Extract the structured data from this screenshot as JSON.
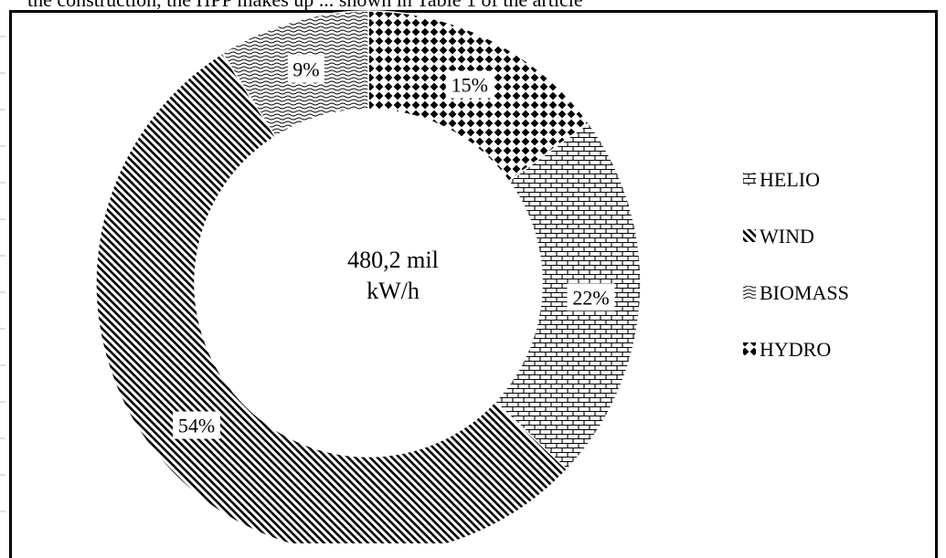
{
  "header_fragment": "the construction, the HPP makes up ... shown in Table 1 of the article",
  "chart_data": {
    "type": "pie",
    "variant": "donut",
    "center_label": [
      "480,2 mil",
      "kW/h"
    ],
    "slices": [
      {
        "name": "HYDRO",
        "value": 15,
        "label": "15%",
        "pattern": "diamond-grid"
      },
      {
        "name": "HELIO",
        "value": 22,
        "label": "22%",
        "pattern": "brick"
      },
      {
        "name": "WIND",
        "value": 54,
        "label": "54%",
        "pattern": "diagonal-lines"
      },
      {
        "name": "BIOMASS",
        "value": 9,
        "label": "9%",
        "pattern": "wave"
      }
    ],
    "legend": {
      "placement": "right",
      "entries": [
        "HELIO",
        "WIND",
        "BIOMASS",
        "HYDRO"
      ]
    },
    "colors": {
      "ink": "#000000",
      "background": "#ffffff"
    }
  }
}
